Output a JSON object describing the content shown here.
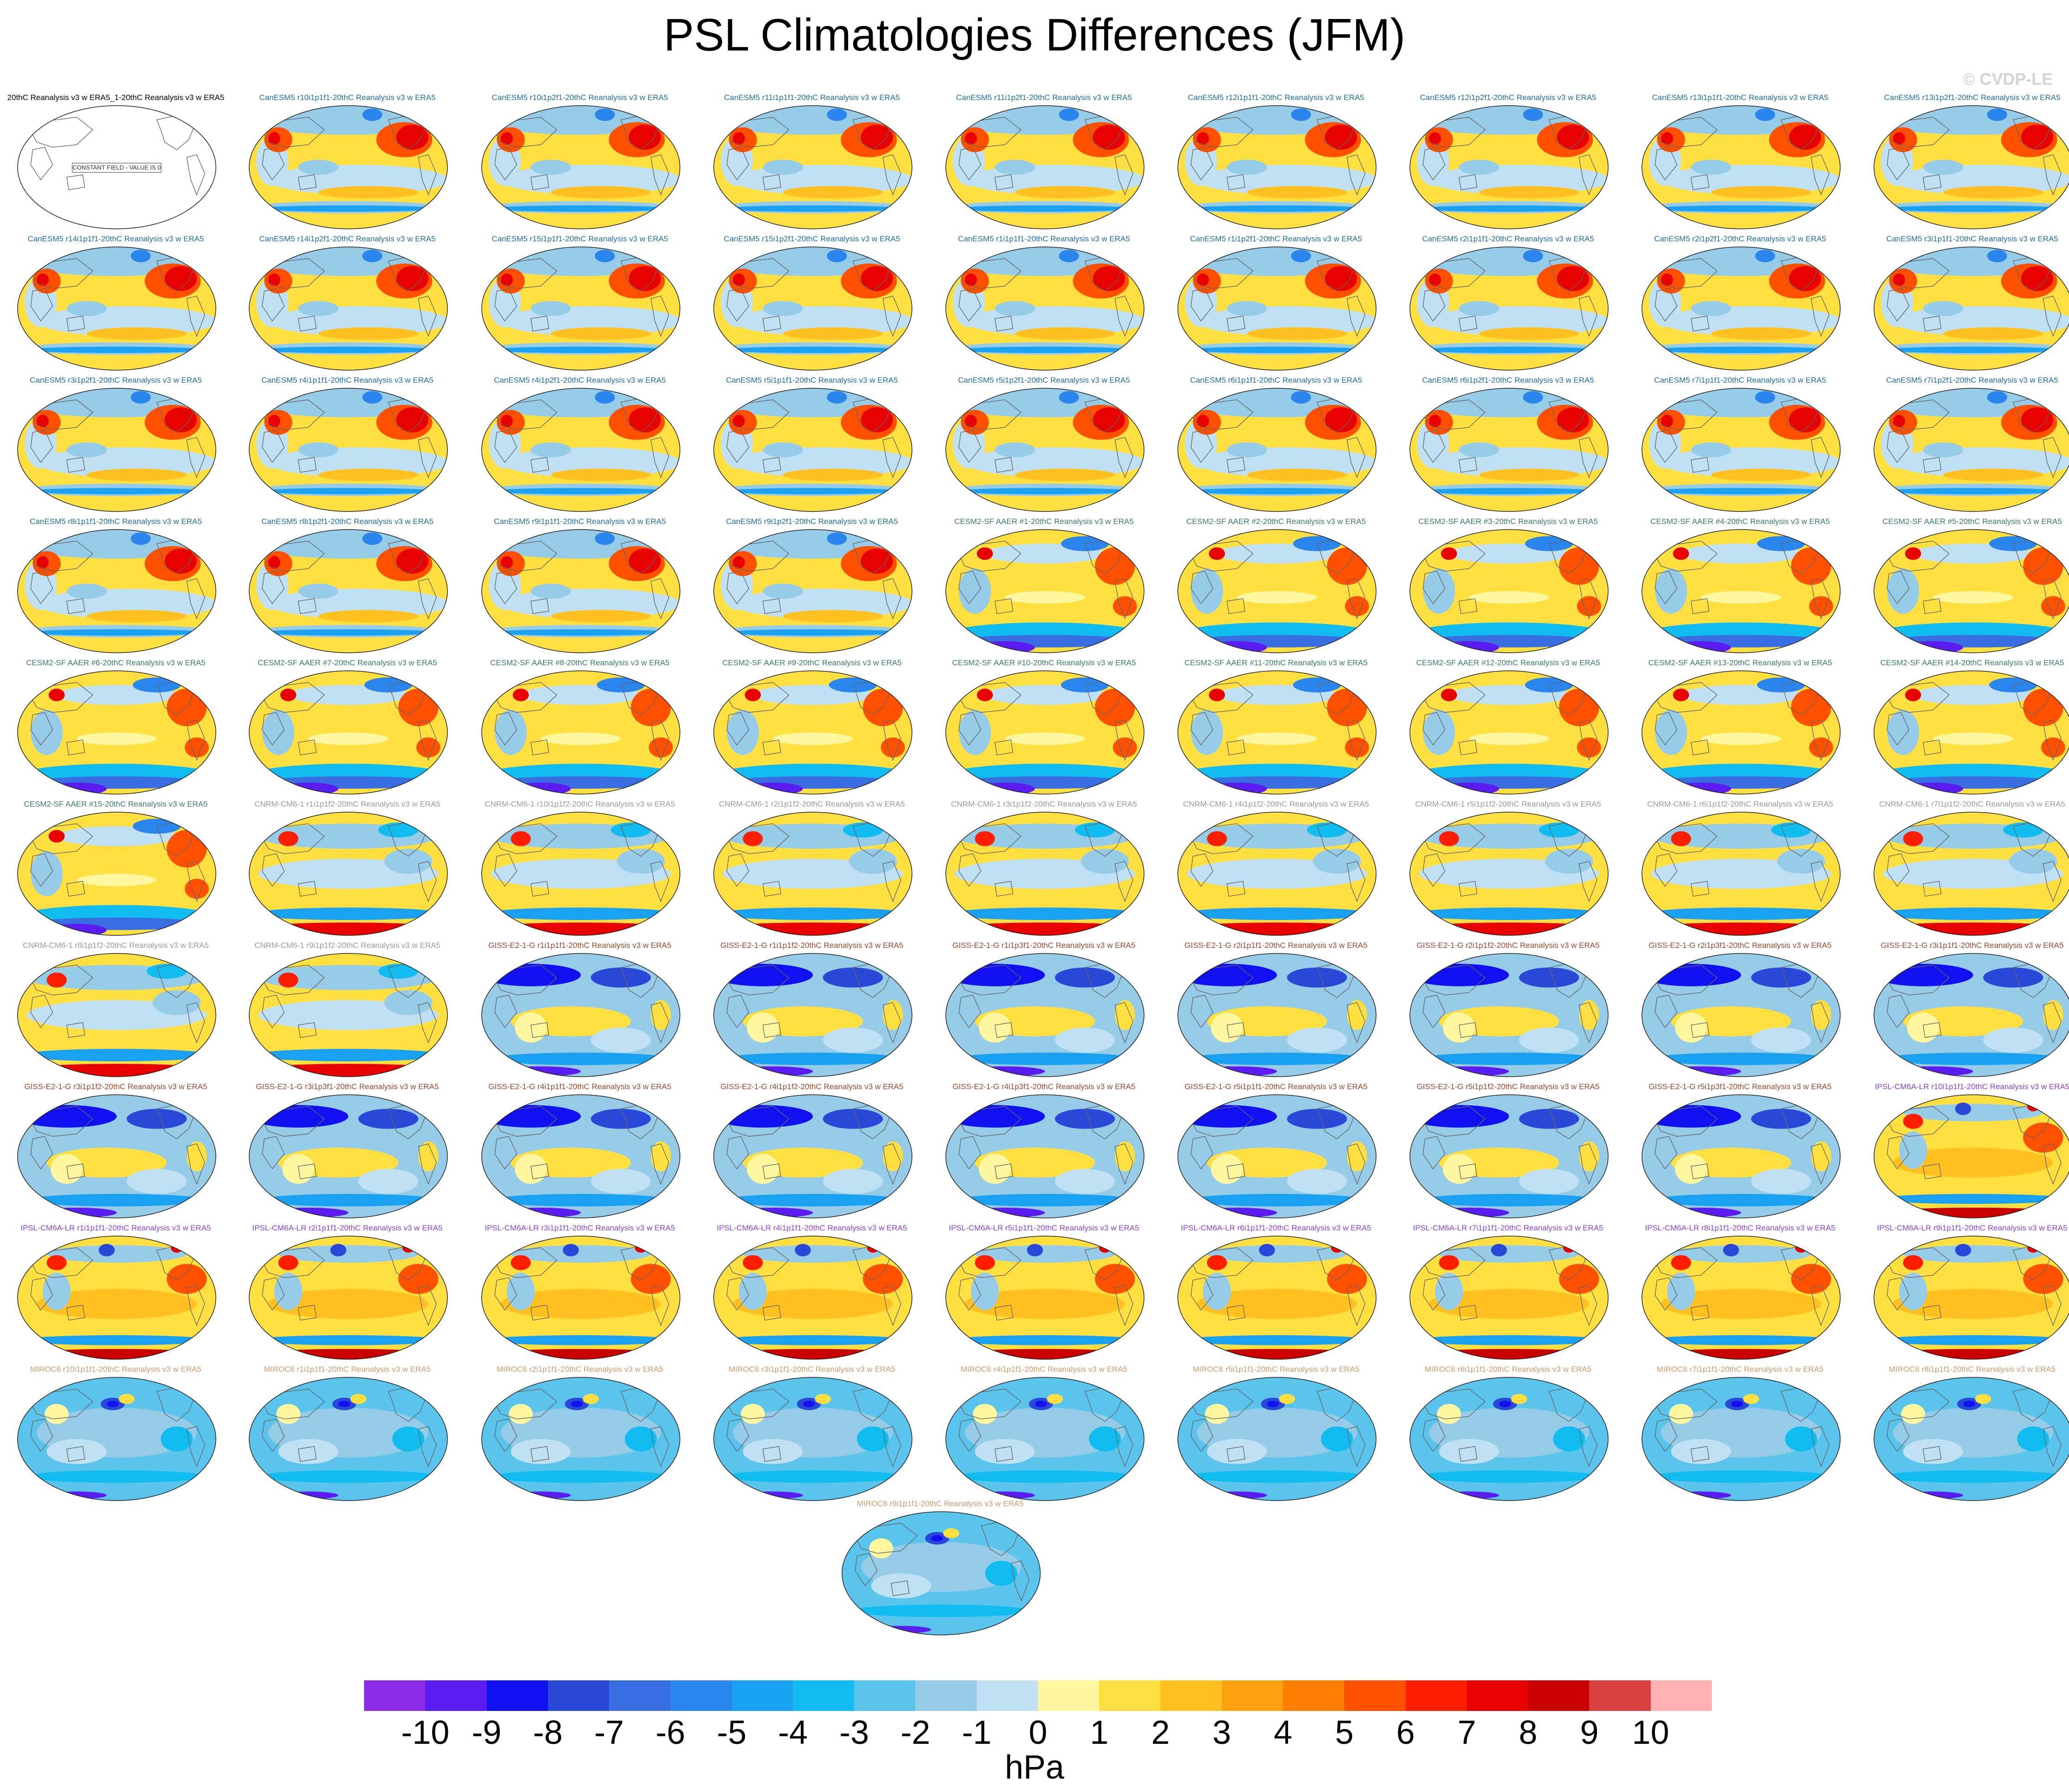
{
  "title": "PSL Climatologies Differences (JFM)",
  "watermark": "© CVDP-LE",
  "obs_panel": {
    "label": "20thC Reanalysis v3 w ERA5_1-20thC Reanalysis v3 w ERA5",
    "note": "CONSTANT FIELD - VALUE IS 0"
  },
  "model_colors": {
    "CanESM5": "#1f6fa0",
    "CESM2-SF AAER": "#3a7a72",
    "CNRM-CM6-1": "#9a9a9a",
    "GISS-E2-1-G": "#9a4a2a",
    "IPSL-CM6A-LR": "#8a44d0",
    "MIROC6": "#d09a6a"
  },
  "panels": [
    {
      "label": "CanESM5 r10i1p1f1-20thC Reanalysis v3 w ERA5",
      "model": "CanESM5",
      "pattern": "canesm"
    },
    {
      "label": "CanESM5 r10i1p2f1-20thC Reanalysis v3 w ERA5",
      "model": "CanESM5",
      "pattern": "canesm"
    },
    {
      "label": "CanESM5 r11i1p1f1-20thC Reanalysis v3 w ERA5",
      "model": "CanESM5",
      "pattern": "canesm"
    },
    {
      "label": "CanESM5 r11i1p2f1-20thC Reanalysis v3 w ERA5",
      "model": "CanESM5",
      "pattern": "canesm"
    },
    {
      "label": "CanESM5 r12i1p1f1-20thC Reanalysis v3 w ERA5",
      "model": "CanESM5",
      "pattern": "canesm"
    },
    {
      "label": "CanESM5 r12i1p2f1-20thC Reanalysis v3 w ERA5",
      "model": "CanESM5",
      "pattern": "canesm"
    },
    {
      "label": "CanESM5 r13i1p1f1-20thC Reanalysis v3 w ERA5",
      "model": "CanESM5",
      "pattern": "canesm"
    },
    {
      "label": "CanESM5 r13i1p2f1-20thC Reanalysis v3 w ERA5",
      "model": "CanESM5",
      "pattern": "canesm"
    },
    {
      "label": "CanESM5 r14i1p1f1-20thC Reanalysis v3 w ERA5",
      "model": "CanESM5",
      "pattern": "canesm"
    },
    {
      "label": "CanESM5 r14i1p2f1-20thC Reanalysis v3 w ERA5",
      "model": "CanESM5",
      "pattern": "canesm"
    },
    {
      "label": "CanESM5 r15i1p1f1-20thC Reanalysis v3 w ERA5",
      "model": "CanESM5",
      "pattern": "canesm"
    },
    {
      "label": "CanESM5 r15i1p2f1-20thC Reanalysis v3 w ERA5",
      "model": "CanESM5",
      "pattern": "canesm"
    },
    {
      "label": "CanESM5 r1i1p1f1-20thC Reanalysis v3 w ERA5",
      "model": "CanESM5",
      "pattern": "canesm"
    },
    {
      "label": "CanESM5 r1i1p2f1-20thC Reanalysis v3 w ERA5",
      "model": "CanESM5",
      "pattern": "canesm"
    },
    {
      "label": "CanESM5 r2i1p1f1-20thC Reanalysis v3 w ERA5",
      "model": "CanESM5",
      "pattern": "canesm"
    },
    {
      "label": "CanESM5 r2i1p2f1-20thC Reanalysis v3 w ERA5",
      "model": "CanESM5",
      "pattern": "canesm"
    },
    {
      "label": "CanESM5 r3i1p1f1-20thC Reanalysis v3 w ERA5",
      "model": "CanESM5",
      "pattern": "canesm"
    },
    {
      "label": "CanESM5 r3i1p2f1-20thC Reanalysis v3 w ERA5",
      "model": "CanESM5",
      "pattern": "canesm"
    },
    {
      "label": "CanESM5 r4i1p1f1-20thC Reanalysis v3 w ERA5",
      "model": "CanESM5",
      "pattern": "canesm"
    },
    {
      "label": "CanESM5 r4i1p2f1-20thC Reanalysis v3 w ERA5",
      "model": "CanESM5",
      "pattern": "canesm"
    },
    {
      "label": "CanESM5 r5i1p1f1-20thC Reanalysis v3 w ERA5",
      "model": "CanESM5",
      "pattern": "canesm"
    },
    {
      "label": "CanESM5 r5i1p2f1-20thC Reanalysis v3 w ERA5",
      "model": "CanESM5",
      "pattern": "canesm"
    },
    {
      "label": "CanESM5 r6i1p1f1-20thC Reanalysis v3 w ERA5",
      "model": "CanESM5",
      "pattern": "canesm"
    },
    {
      "label": "CanESM5 r6i1p2f1-20thC Reanalysis v3 w ERA5",
      "model": "CanESM5",
      "pattern": "canesm"
    },
    {
      "label": "CanESM5 r7i1p1f1-20thC Reanalysis v3 w ERA5",
      "model": "CanESM5",
      "pattern": "canesm"
    },
    {
      "label": "CanESM5 r7i1p2f1-20thC Reanalysis v3 w ERA5",
      "model": "CanESM5",
      "pattern": "canesm"
    },
    {
      "label": "CanESM5 r8i1p1f1-20thC Reanalysis v3 w ERA5",
      "model": "CanESM5",
      "pattern": "canesm"
    },
    {
      "label": "CanESM5 r8i1p2f1-20thC Reanalysis v3 w ERA5",
      "model": "CanESM5",
      "pattern": "canesm"
    },
    {
      "label": "CanESM5 r9i1p1f1-20thC Reanalysis v3 w ERA5",
      "model": "CanESM5",
      "pattern": "canesm"
    },
    {
      "label": "CanESM5 r9i1p2f1-20thC Reanalysis v3 w ERA5",
      "model": "CanESM5",
      "pattern": "canesm"
    },
    {
      "label": "CESM2-SF AAER #1-20thC Reanalysis v3 w ERA5",
      "model": "CESM2-SF AAER",
      "pattern": "cesm"
    },
    {
      "label": "CESM2-SF AAER #2-20thC Reanalysis v3 w ERA5",
      "model": "CESM2-SF AAER",
      "pattern": "cesm"
    },
    {
      "label": "CESM2-SF AAER #3-20thC Reanalysis v3 w ERA5",
      "model": "CESM2-SF AAER",
      "pattern": "cesm"
    },
    {
      "label": "CESM2-SF AAER #4-20thC Reanalysis v3 w ERA5",
      "model": "CESM2-SF AAER",
      "pattern": "cesm"
    },
    {
      "label": "CESM2-SF AAER #5-20thC Reanalysis v3 w ERA5",
      "model": "CESM2-SF AAER",
      "pattern": "cesm"
    },
    {
      "label": "CESM2-SF AAER #6-20thC Reanalysis v3 w ERA5",
      "model": "CESM2-SF AAER",
      "pattern": "cesm"
    },
    {
      "label": "CESM2-SF AAER #7-20thC Reanalysis v3 w ERA5",
      "model": "CESM2-SF AAER",
      "pattern": "cesm"
    },
    {
      "label": "CESM2-SF AAER #8-20thC Reanalysis v3 w ERA5",
      "model": "CESM2-SF AAER",
      "pattern": "cesm"
    },
    {
      "label": "CESM2-SF AAER #9-20thC Reanalysis v3 w ERA5",
      "model": "CESM2-SF AAER",
      "pattern": "cesm"
    },
    {
      "label": "CESM2-SF AAER #10-20thC Reanalysis v3 w ERA5",
      "model": "CESM2-SF AAER",
      "pattern": "cesm"
    },
    {
      "label": "CESM2-SF AAER #11-20thC Reanalysis v3 w ERA5",
      "model": "CESM2-SF AAER",
      "pattern": "cesm"
    },
    {
      "label": "CESM2-SF AAER #12-20thC Reanalysis v3 w ERA5",
      "model": "CESM2-SF AAER",
      "pattern": "cesm"
    },
    {
      "label": "CESM2-SF AAER #13-20thC Reanalysis v3 w ERA5",
      "model": "CESM2-SF AAER",
      "pattern": "cesm"
    },
    {
      "label": "CESM2-SF AAER #14-20thC Reanalysis v3 w ERA5",
      "model": "CESM2-SF AAER",
      "pattern": "cesm"
    },
    {
      "label": "CESM2-SF AAER #15-20thC Reanalysis v3 w ERA5",
      "model": "CESM2-SF AAER",
      "pattern": "cesm"
    },
    {
      "label": "CNRM-CM6-1 r1i1p1f2-20thC Reanalysis v3 w ERA5",
      "model": "CNRM-CM6-1",
      "pattern": "cnrm"
    },
    {
      "label": "CNRM-CM6-1 r10i1p1f2-20thC Reanalysis v3 w ERA5",
      "model": "CNRM-CM6-1",
      "pattern": "cnrm"
    },
    {
      "label": "CNRM-CM6-1 r2i1p1f2-20thC Reanalysis v3 w ERA5",
      "model": "CNRM-CM6-1",
      "pattern": "cnrm"
    },
    {
      "label": "CNRM-CM6-1 r3i1p1f2-20thC Reanalysis v3 w ERA5",
      "model": "CNRM-CM6-1",
      "pattern": "cnrm"
    },
    {
      "label": "CNRM-CM6-1 r4i1p1f2-20thC Reanalysis v3 w ERA5",
      "model": "CNRM-CM6-1",
      "pattern": "cnrm"
    },
    {
      "label": "CNRM-CM6-1 r5i1p1f2-20thC Reanalysis v3 w ERA5",
      "model": "CNRM-CM6-1",
      "pattern": "cnrm"
    },
    {
      "label": "CNRM-CM6-1 r6i1p1f2-20thC Reanalysis v3 w ERA5",
      "model": "CNRM-CM6-1",
      "pattern": "cnrm"
    },
    {
      "label": "CNRM-CM6-1 r7i1p1f2-20thC Reanalysis v3 w ERA5",
      "model": "CNRM-CM6-1",
      "pattern": "cnrm"
    },
    {
      "label": "CNRM-CM6-1 r8i1p1f2-20thC Reanalysis v3 w ERA5",
      "model": "CNRM-CM6-1",
      "pattern": "cnrm"
    },
    {
      "label": "CNRM-CM6-1 r9i1p1f2-20thC Reanalysis v3 w ERA5",
      "model": "CNRM-CM6-1",
      "pattern": "cnrm"
    },
    {
      "label": "GISS-E2-1-G r1i1p1f1-20thC Reanalysis v3 w ERA5",
      "model": "GISS-E2-1-G",
      "pattern": "giss"
    },
    {
      "label": "GISS-E2-1-G r1i1p1f2-20thC Reanalysis v3 w ERA5",
      "model": "GISS-E2-1-G",
      "pattern": "giss"
    },
    {
      "label": "GISS-E2-1-G r1i1p3f1-20thC Reanalysis v3 w ERA5",
      "model": "GISS-E2-1-G",
      "pattern": "giss"
    },
    {
      "label": "GISS-E2-1-G r2i1p1f1-20thC Reanalysis v3 w ERA5",
      "model": "GISS-E2-1-G",
      "pattern": "giss"
    },
    {
      "label": "GISS-E2-1-G r2i1p1f2-20thC Reanalysis v3 w ERA5",
      "model": "GISS-E2-1-G",
      "pattern": "giss"
    },
    {
      "label": "GISS-E2-1-G r2i1p3f1-20thC Reanalysis v3 w ERA5",
      "model": "GISS-E2-1-G",
      "pattern": "giss"
    },
    {
      "label": "GISS-E2-1-G r3i1p1f1-20thC Reanalysis v3 w ERA5",
      "model": "GISS-E2-1-G",
      "pattern": "giss"
    },
    {
      "label": "GISS-E2-1-G r3i1p1f2-20thC Reanalysis v3 w ERA5",
      "model": "GISS-E2-1-G",
      "pattern": "giss"
    },
    {
      "label": "GISS-E2-1-G r3i1p3f1-20thC Reanalysis v3 w ERA5",
      "model": "GISS-E2-1-G",
      "pattern": "giss"
    },
    {
      "label": "GISS-E2-1-G r4i1p1f1-20thC Reanalysis v3 w ERA5",
      "model": "GISS-E2-1-G",
      "pattern": "giss"
    },
    {
      "label": "GISS-E2-1-G r4i1p1f2-20thC Reanalysis v3 w ERA5",
      "model": "GISS-E2-1-G",
      "pattern": "giss"
    },
    {
      "label": "GISS-E2-1-G r4i1p3f1-20thC Reanalysis v3 w ERA5",
      "model": "GISS-E2-1-G",
      "pattern": "giss"
    },
    {
      "label": "GISS-E2-1-G r5i1p1f1-20thC Reanalysis v3 w ERA5",
      "model": "GISS-E2-1-G",
      "pattern": "giss"
    },
    {
      "label": "GISS-E2-1-G r5i1p1f2-20thC Reanalysis v3 w ERA5",
      "model": "GISS-E2-1-G",
      "pattern": "giss"
    },
    {
      "label": "GISS-E2-1-G r5i1p3f1-20thC Reanalysis v3 w ERA5",
      "model": "GISS-E2-1-G",
      "pattern": "giss"
    },
    {
      "label": "IPSL-CM6A-LR r10i1p1f1-20thC Reanalysis v3 w ERA5",
      "model": "IPSL-CM6A-LR",
      "pattern": "ipsl"
    },
    {
      "label": "IPSL-CM6A-LR r1i1p1f1-20thC Reanalysis v3 w ERA5",
      "model": "IPSL-CM6A-LR",
      "pattern": "ipsl"
    },
    {
      "label": "IPSL-CM6A-LR r2i1p1f1-20thC Reanalysis v3 w ERA5",
      "model": "IPSL-CM6A-LR",
      "pattern": "ipsl"
    },
    {
      "label": "IPSL-CM6A-LR r3i1p1f1-20thC Reanalysis v3 w ERA5",
      "model": "IPSL-CM6A-LR",
      "pattern": "ipsl"
    },
    {
      "label": "IPSL-CM6A-LR r4i1p1f1-20thC Reanalysis v3 w ERA5",
      "model": "IPSL-CM6A-LR",
      "pattern": "ipsl"
    },
    {
      "label": "IPSL-CM6A-LR r5i1p1f1-20thC Reanalysis v3 w ERA5",
      "model": "IPSL-CM6A-LR",
      "pattern": "ipsl"
    },
    {
      "label": "IPSL-CM6A-LR r6i1p1f1-20thC Reanalysis v3 w ERA5",
      "model": "IPSL-CM6A-LR",
      "pattern": "ipsl"
    },
    {
      "label": "IPSL-CM6A-LR r7i1p1f1-20thC Reanalysis v3 w ERA5",
      "model": "IPSL-CM6A-LR",
      "pattern": "ipsl"
    },
    {
      "label": "IPSL-CM6A-LR r8i1p1f1-20thC Reanalysis v3 w ERA5",
      "model": "IPSL-CM6A-LR",
      "pattern": "ipsl"
    },
    {
      "label": "IPSL-CM6A-LR r9i1p1f1-20thC Reanalysis v3 w ERA5",
      "model": "IPSL-CM6A-LR",
      "pattern": "ipsl"
    },
    {
      "label": "MIROC6 r10i1p1f1-20thC Reanalysis v3 w ERA5",
      "model": "MIROC6",
      "pattern": "miroc"
    },
    {
      "label": "MIROC6 r1i1p1f1-20thC Reanalysis v3 w ERA5",
      "model": "MIROC6",
      "pattern": "miroc"
    },
    {
      "label": "MIROC6 r2i1p1f1-20thC Reanalysis v3 w ERA5",
      "model": "MIROC6",
      "pattern": "miroc"
    },
    {
      "label": "MIROC6 r3i1p1f1-20thC Reanalysis v3 w ERA5",
      "model": "MIROC6",
      "pattern": "miroc"
    },
    {
      "label": "MIROC6 r4i1p1f1-20thC Reanalysis v3 w ERA5",
      "model": "MIROC6",
      "pattern": "miroc"
    },
    {
      "label": "MIROC6 r5i1p1f1-20thC Reanalysis v3 w ERA5",
      "model": "MIROC6",
      "pattern": "miroc"
    },
    {
      "label": "MIROC6 r6i1p1f1-20thC Reanalysis v3 w ERA5",
      "model": "MIROC6",
      "pattern": "miroc"
    },
    {
      "label": "MIROC6 r7i1p1f1-20thC Reanalysis v3 w ERA5",
      "model": "MIROC6",
      "pattern": "miroc"
    },
    {
      "label": "MIROC6 r8i1p1f1-20thC Reanalysis v3 w ERA5",
      "model": "MIROC6",
      "pattern": "miroc"
    },
    {
      "label": "MIROC6 r9i1p1f1-20thC Reanalysis v3 w ERA5",
      "model": "MIROC6",
      "pattern": "miroc"
    }
  ],
  "colorbar": {
    "colors": [
      "#8a2be8",
      "#5a1cf0",
      "#1010f0",
      "#2a48d8",
      "#3a6ee0",
      "#2a86ec",
      "#1aa0f0",
      "#10bcf0",
      "#5ac4ec",
      "#96cce8",
      "#c0e0f4",
      "#fff6a0",
      "#ffe040",
      "#ffc020",
      "#ffa010",
      "#ff8000",
      "#ff5000",
      "#ff1e00",
      "#e80000",
      "#c80000",
      "#d84040",
      "#ffb0b0"
    ],
    "tick_labels": [
      "-10",
      "-9",
      "-8",
      "-7",
      "-6",
      "-5",
      "-4",
      "-3",
      "-2",
      "-1",
      "0",
      "1",
      "2",
      "3",
      "4",
      "5",
      "6",
      "7",
      "8",
      "9",
      "10"
    ],
    "unit": "hPa"
  }
}
